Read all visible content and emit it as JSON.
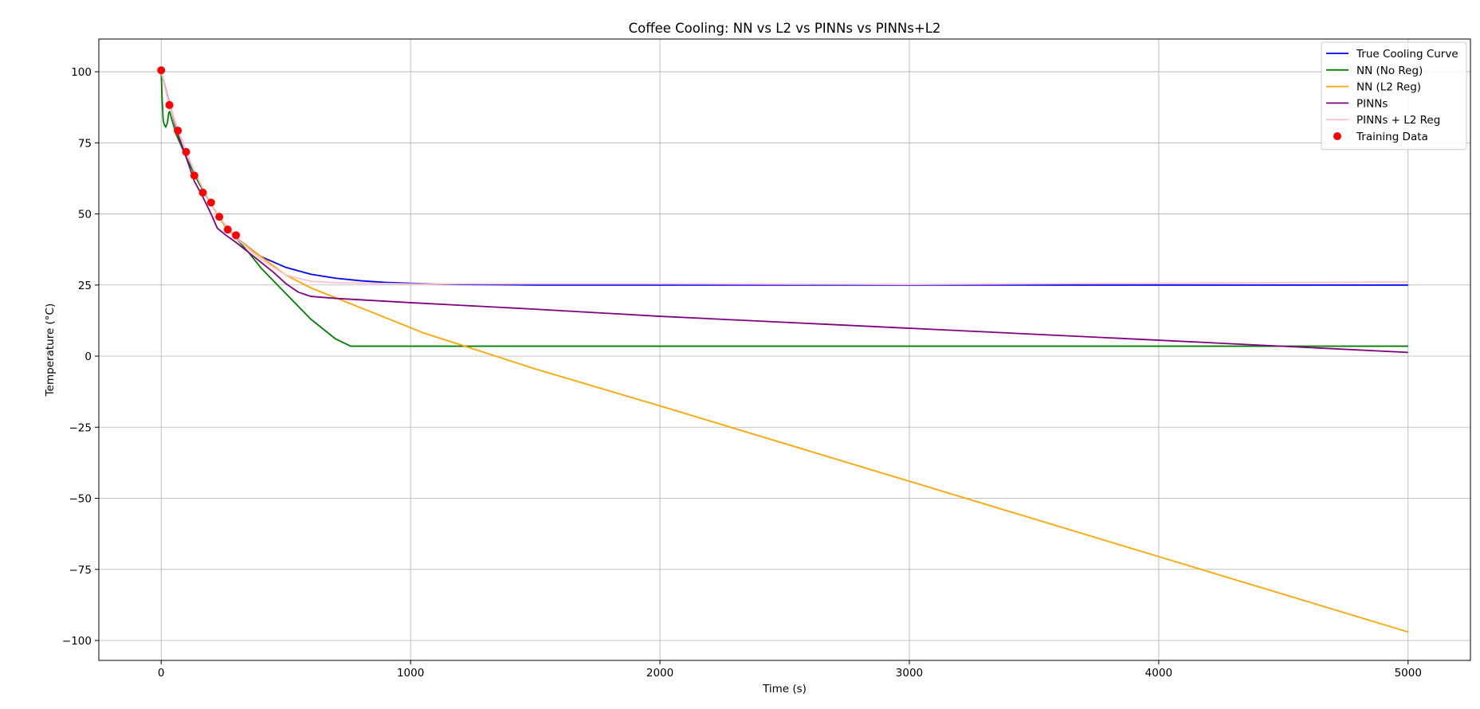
{
  "chart_data": {
    "type": "line",
    "title": "Coffee Cooling: NN vs L2 vs PINNs vs PINNs+L2",
    "xlabel": "Time (s)",
    "ylabel": "Temperature (°C)",
    "xlim": [
      -250,
      5250
    ],
    "ylim": [
      -107,
      111.5
    ],
    "xticks": [
      0,
      1000,
      2000,
      3000,
      4000,
      5000
    ],
    "yticks": [
      -100,
      -75,
      -50,
      -25,
      0,
      25,
      50,
      75,
      100
    ],
    "xtick_labels": [
      "0",
      "1000",
      "2000",
      "3000",
      "4000",
      "5000"
    ],
    "ytick_labels": [
      "−100",
      "−75",
      "−50",
      "−25",
      "0",
      "25",
      "50",
      "75",
      "100"
    ],
    "grid": true,
    "legend_position": "top-right",
    "series": [
      {
        "name": "True Cooling Curve",
        "type": "line",
        "color": "#0000ff",
        "x": [
          0,
          33,
          67,
          100,
          133,
          167,
          200,
          233,
          267,
          300,
          400,
          500,
          600,
          700,
          800,
          900,
          1000,
          1200,
          1500,
          2000,
          3000,
          4000,
          5000
        ],
        "y": [
          100,
          88.5,
          79.3,
          71.8,
          64.9,
          58.8,
          53.5,
          48.9,
          45.0,
          41.6,
          35.0,
          31.2,
          28.8,
          27.4,
          26.5,
          25.9,
          25.6,
          25.2,
          25.0,
          25.0,
          25.0,
          25.0,
          25.0
        ]
      },
      {
        "name": "NN (No Reg)",
        "type": "line",
        "color": "#008000",
        "x": [
          0,
          4,
          8,
          12,
          18,
          25,
          30,
          34,
          40,
          60,
          100,
          150,
          200,
          250,
          300,
          350,
          400,
          500,
          600,
          700,
          760,
          1000,
          2000,
          3000,
          4000,
          5000
        ],
        "y": [
          100,
          90,
          83,
          81.5,
          80.5,
          82,
          85.5,
          86,
          84,
          78,
          70,
          61,
          53.5,
          46.5,
          41.5,
          36.5,
          31,
          22,
          13,
          6,
          3.5,
          3.5,
          3.5,
          3.5,
          3.5,
          3.5
        ]
      },
      {
        "name": "NN (L2 Reg)",
        "type": "line",
        "color": "#ffa500",
        "x": [
          0,
          33,
          67,
          100,
          133,
          167,
          200,
          233,
          267,
          300,
          400,
          500,
          600,
          700,
          800,
          900,
          1000,
          1050,
          1200,
          1500,
          2000,
          3000,
          4000,
          5000
        ],
        "y": [
          100,
          88.5,
          79.5,
          72,
          65,
          59,
          53.5,
          48.5,
          44.5,
          41.5,
          35,
          28.5,
          24,
          20.5,
          17,
          13.5,
          10,
          8.2,
          4,
          -4.5,
          -17.5,
          -44,
          -70.5,
          -97
        ]
      },
      {
        "name": "PINNs",
        "type": "line",
        "color": "#800080",
        "x": [
          0,
          33,
          67,
          100,
          133,
          167,
          200,
          225,
          260,
          300,
          350,
          400,
          450,
          500,
          550,
          600,
          700,
          1000,
          1500,
          2000,
          3000,
          4000,
          5000
        ],
        "y": [
          100,
          89,
          78,
          70,
          61.5,
          56,
          50,
          45,
          42.5,
          40,
          36.5,
          33,
          29.5,
          25.5,
          22.5,
          21,
          20.3,
          18.8,
          16.5,
          14,
          9.8,
          5.6,
          1.3
        ]
      },
      {
        "name": "PINNs + L2 Reg",
        "type": "line",
        "color": "#ffc0cb",
        "x": [
          0,
          33,
          67,
          100,
          133,
          167,
          200,
          233,
          267,
          300,
          400,
          500,
          600,
          700,
          1000,
          2000,
          3000,
          4000,
          5000
        ],
        "y": [
          100,
          88.5,
          79.3,
          71.8,
          65,
          59,
          53.5,
          49,
          45,
          41.5,
          34,
          28.5,
          26.3,
          25.8,
          25.4,
          25.4,
          25.2,
          25.6,
          26.1
        ]
      },
      {
        "name": "Training Data",
        "type": "scatter",
        "color": "#ff0000",
        "x": [
          0,
          33,
          67,
          100,
          133,
          167,
          200,
          233,
          267,
          300
        ],
        "y": [
          100.5,
          88.3,
          79.3,
          71.8,
          63.5,
          57.5,
          54,
          49,
          44.5,
          42.5
        ]
      }
    ]
  }
}
